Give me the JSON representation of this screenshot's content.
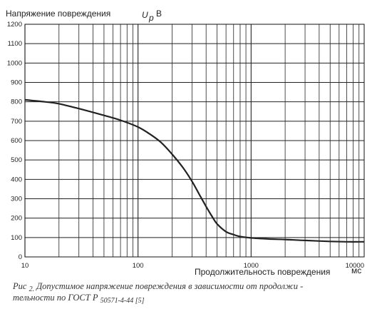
{
  "chart_data": {
    "type": "line",
    "xscale": "log",
    "xlim": [
      10,
      10000
    ],
    "ylim": [
      0,
      1200
    ],
    "ylabel_main": "Напряжение   повреждения",
    "ylabel_symbol": "U",
    "ylabel_sub": "p",
    "ylabel_unit": "В",
    "xlabel": "Продолжительность   повреждения",
    "xlabel_unit": "мс",
    "xticks": [
      "10",
      "100",
      "1000",
      "10000"
    ],
    "yticks": [
      "0",
      "100",
      "200",
      "300",
      "400",
      "500",
      "600",
      "700",
      "800",
      "900",
      "1000",
      "1100",
      "1200"
    ],
    "grid": true,
    "series": [
      {
        "x": [
          10,
          15,
          20,
          30,
          50,
          70,
          100,
          130,
          160,
          200,
          250,
          300,
          350,
          400,
          450,
          500,
          600,
          700,
          800,
          1000,
          1500,
          2000,
          3000,
          5000,
          7000,
          10000
        ],
        "y": [
          810,
          800,
          790,
          765,
          730,
          705,
          670,
          630,
          590,
          530,
          460,
          390,
          320,
          260,
          210,
          170,
          130,
          115,
          105,
          98,
          92,
          90,
          85,
          80,
          78,
          78
        ]
      }
    ]
  },
  "caption": {
    "prefix": "Рис",
    "number": "2.",
    "line1": "Допустимое   напряжение   повреждения   в зависимости   от продолжи",
    "line1_end": "-",
    "line2_start": "тельности    по ГОСТ Р",
    "line2_gost": "50571-4-44 [5]"
  }
}
